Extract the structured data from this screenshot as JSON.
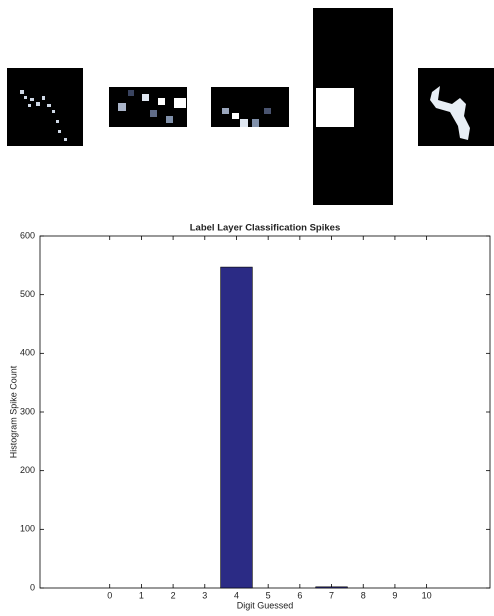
{
  "chart_data": {
    "type": "bar",
    "title": "Label Layer Classification Spikes",
    "x_label": "Digit Guessed",
    "y_label": "Histogram Spike Count",
    "x": [
      0,
      1,
      2,
      3,
      4,
      5,
      6,
      7,
      8,
      9,
      10
    ],
    "values": [
      0,
      0,
      0,
      0,
      547,
      0,
      0,
      2,
      0,
      0,
      0
    ],
    "color": "#2b2b85",
    "xlim": [
      -2.2,
      12
    ],
    "xticks": [
      0,
      1,
      2,
      3,
      4,
      5,
      6,
      7,
      8,
      9,
      10
    ],
    "ylim": [
      0,
      600
    ],
    "yticks": [
      0,
      100,
      200,
      300,
      400,
      500,
      600
    ]
  }
}
